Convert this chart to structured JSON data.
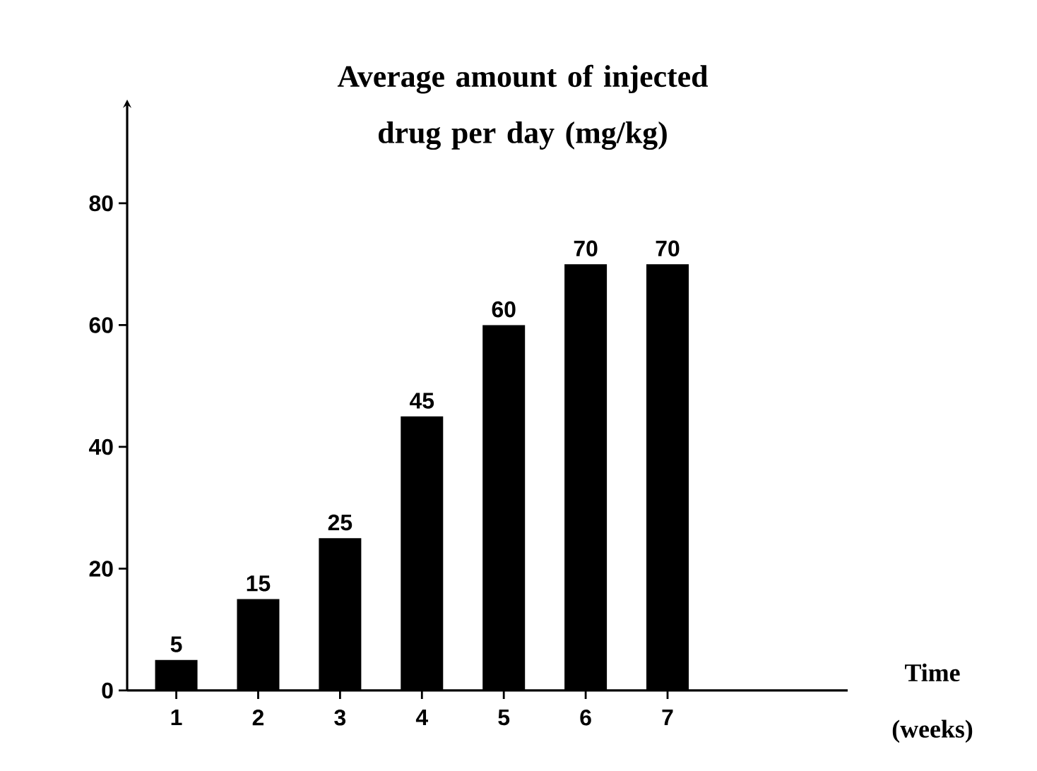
{
  "chart_data": {
    "type": "bar",
    "ylabel": "Average amount of injected drug per day (mg/kg)",
    "xlabel": "Time (weeks)",
    "categories": [
      "1",
      "2",
      "3",
      "4",
      "5",
      "6",
      "7"
    ],
    "values": [
      5,
      15,
      25,
      45,
      60,
      70,
      70
    ],
    "color": "#000000",
    "ylim": [
      0,
      96
    ],
    "yticks": [
      0,
      20,
      40,
      60,
      80
    ],
    "data_labels": true,
    "grid": false
  }
}
